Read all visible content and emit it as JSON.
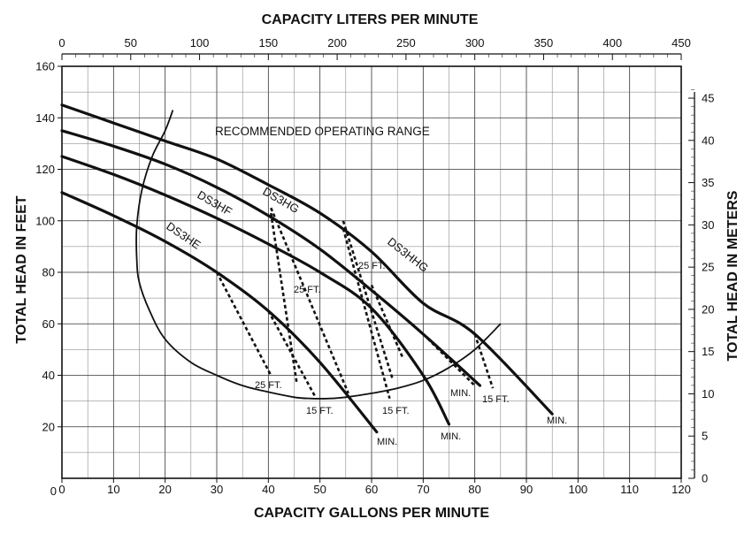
{
  "chart_data": {
    "type": "line",
    "title_top": "CAPACITY LITERS PER MINUTE",
    "xlabel": "CAPACITY GALLONS PER MINUTE",
    "ylabel_left": "TOTAL HEAD IN FEET",
    "ylabel_right": "TOTAL HEAD IN METERS",
    "xlim": [
      0,
      120
    ],
    "ylim": [
      0,
      160
    ],
    "x_ticks": [
      0,
      10,
      20,
      30,
      40,
      50,
      60,
      70,
      80,
      90,
      100,
      110,
      120
    ],
    "y_ticks_left": [
      20,
      40,
      60,
      80,
      100,
      120,
      140,
      160
    ],
    "top_axis": {
      "unit_min": 0,
      "unit_max": 450,
      "ticks": [
        0,
        50,
        100,
        150,
        200,
        250,
        300,
        350,
        400,
        450
      ]
    },
    "right_axis": {
      "unit_min": 0,
      "unit_max": 48.77,
      "ticks": [
        0,
        5,
        10,
        15,
        20,
        25,
        30,
        35,
        40,
        45
      ]
    },
    "grid": true,
    "line_color": "#111111",
    "series": [
      {
        "name": "DS3HE",
        "x": [
          0,
          10,
          20,
          30,
          40,
          50,
          61
        ],
        "y": [
          111,
          102,
          92,
          80,
          65,
          45,
          18
        ]
      },
      {
        "name": "DS3HF",
        "x": [
          0,
          10,
          20,
          30,
          40,
          50,
          60,
          70,
          75
        ],
        "y": [
          125,
          118,
          110,
          101,
          91,
          80,
          66,
          40,
          21
        ]
      },
      {
        "name": "DS3HG",
        "x": [
          0,
          10,
          20,
          30,
          40,
          50,
          60,
          70,
          81
        ],
        "y": [
          135,
          129,
          122,
          113,
          102,
          89,
          73,
          56,
          36
        ]
      },
      {
        "name": "DS3HHG",
        "x": [
          0,
          10,
          20,
          30,
          40,
          50,
          60,
          70,
          80,
          95
        ],
        "y": [
          145,
          138,
          131,
          124,
          114,
          103,
          88,
          68,
          56,
          25
        ]
      }
    ],
    "dashed_lines": [
      {
        "x": [
          30,
          40.5
        ],
        "y": [
          80,
          40
        ]
      },
      {
        "x": [
          40,
          49
        ],
        "y": [
          65,
          32
        ]
      },
      {
        "x": [
          40.5,
          45.5
        ],
        "y": [
          103,
          37
        ]
      },
      {
        "x": [
          40.5,
          55.5
        ],
        "y": [
          105,
          33
        ]
      },
      {
        "x": [
          54.5,
          64
        ],
        "y": [
          100,
          39
        ]
      },
      {
        "x": [
          54.5,
          63.5
        ],
        "y": [
          97,
          31
        ]
      },
      {
        "x": [
          60,
          66
        ],
        "y": [
          75,
          47
        ]
      },
      {
        "x": [
          70,
          80
        ],
        "y": [
          56,
          36
        ]
      },
      {
        "x": [
          80,
          83.5
        ],
        "y": [
          56,
          35
        ]
      }
    ],
    "operating_range_envelope": {
      "x": [
        21.5,
        20,
        17.5,
        15.5,
        14.5,
        14.5,
        15,
        17,
        20,
        25,
        30,
        35,
        40,
        45,
        48,
        52,
        55,
        60,
        65,
        70,
        75,
        80,
        85
      ],
      "y": [
        143,
        135,
        125,
        112,
        98,
        85,
        76,
        65,
        54,
        45,
        40,
        36,
        33.5,
        31.5,
        31,
        31,
        31.5,
        33,
        35,
        38,
        43,
        50,
        60
      ]
    },
    "range_label": "RECOMMENDED OPERATING RANGE",
    "annotations": [
      "25 FT.",
      "25 FT.",
      "25 FT.",
      "15 FT.",
      "15 FT.",
      "15 FT.",
      "MIN.",
      "MIN.",
      "MIN.",
      "MIN."
    ]
  }
}
